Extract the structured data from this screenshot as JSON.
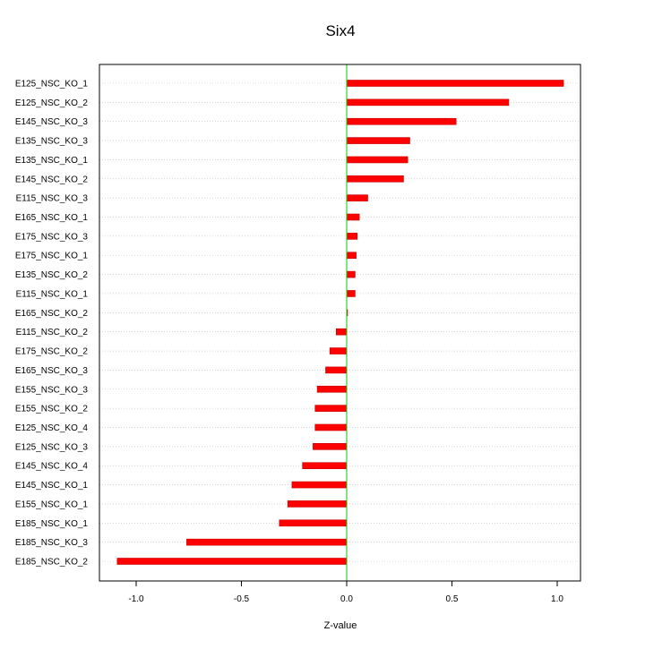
{
  "chart_data": {
    "type": "bar",
    "orientation": "horizontal",
    "title": "Six4",
    "xlabel": "Z-value",
    "ylabel": "",
    "xlim": [
      -1.1,
      1.1
    ],
    "xticks": [
      -1.0,
      -0.5,
      0.0,
      0.5,
      1.0
    ],
    "xtick_labels": [
      "-1.0",
      "-0.5",
      "0.0",
      "0.5",
      "1.0"
    ],
    "grid": "horizontal dotted lines at each category",
    "reference_line": 0,
    "categories": [
      "E125_NSC_KO_1",
      "E125_NSC_KO_2",
      "E145_NSC_KO_3",
      "E135_NSC_KO_3",
      "E135_NSC_KO_1",
      "E145_NSC_KO_2",
      "E115_NSC_KO_3",
      "E165_NSC_KO_1",
      "E175_NSC_KO_3",
      "E175_NSC_KO_1",
      "E135_NSC_KO_2",
      "E115_NSC_KO_1",
      "E165_NSC_KO_2",
      "E115_NSC_KO_2",
      "E175_NSC_KO_2",
      "E165_NSC_KO_3",
      "E155_NSC_KO_3",
      "E155_NSC_KO_2",
      "E125_NSC_KO_4",
      "E125_NSC_KO_3",
      "E145_NSC_KO_4",
      "E145_NSC_KO_1",
      "E155_NSC_KO_1",
      "E185_NSC_KO_1",
      "E185_NSC_KO_3",
      "E185_NSC_KO_2"
    ],
    "values": [
      1.03,
      0.77,
      0.52,
      0.3,
      0.29,
      0.27,
      0.1,
      0.06,
      0.05,
      0.045,
      0.04,
      0.04,
      0.0,
      -0.05,
      -0.08,
      -0.1,
      -0.14,
      -0.15,
      -0.15,
      -0.16,
      -0.21,
      -0.26,
      -0.28,
      -0.32,
      -0.76,
      -1.09
    ],
    "colors": {
      "bar": "#ff0000",
      "bar_stripe": "#c80000",
      "zero_line": "#00cc00",
      "grid": "#bbbbbb",
      "axis": "#000000"
    }
  }
}
